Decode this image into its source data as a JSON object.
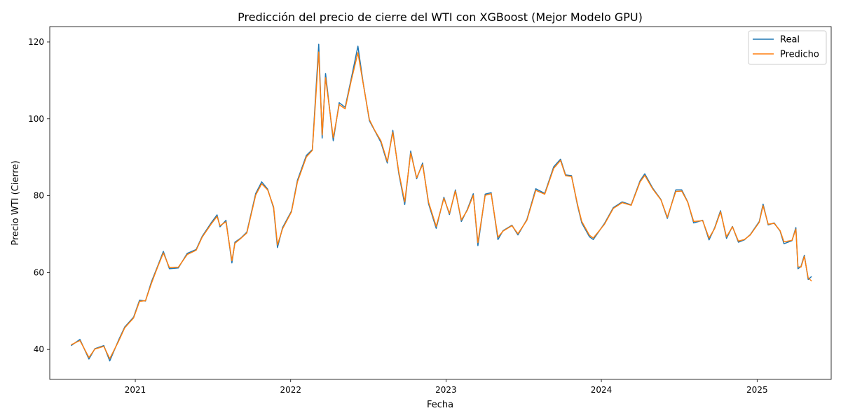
{
  "chart_data": {
    "type": "line",
    "title": "Predicción del precio de cierre del WTI con XGBoost (Mejor Modelo GPU)",
    "xlabel": "Fecha",
    "ylabel": "Precio WTI (Cierre)",
    "xlim": [
      "2020-06-14",
      "2025-06-24"
    ],
    "ylim": [
      32.2,
      124.0
    ],
    "x_ticks": [
      {
        "date": "2021-01-01",
        "label": "2021"
      },
      {
        "date": "2022-01-01",
        "label": "2022"
      },
      {
        "date": "2023-01-01",
        "label": "2023"
      },
      {
        "date": "2024-01-01",
        "label": "2024"
      },
      {
        "date": "2025-01-01",
        "label": "2025"
      }
    ],
    "y_ticks": [
      40,
      60,
      80,
      100,
      120
    ],
    "grid": false,
    "legend_position": "top-right",
    "x": [
      "2020-08-03",
      "2020-08-24",
      "2020-09-14",
      "2020-09-28",
      "2020-10-19",
      "2020-11-02",
      "2020-11-23",
      "2020-12-07",
      "2020-12-28",
      "2021-01-11",
      "2021-01-25",
      "2021-02-08",
      "2021-02-22",
      "2021-03-08",
      "2021-03-22",
      "2021-04-12",
      "2021-05-03",
      "2021-05-24",
      "2021-06-07",
      "2021-06-28",
      "2021-07-12",
      "2021-07-19",
      "2021-08-02",
      "2021-08-16",
      "2021-08-23",
      "2021-09-06",
      "2021-09-20",
      "2021-10-11",
      "2021-10-25",
      "2021-11-08",
      "2021-11-22",
      "2021-12-01",
      "2021-12-13",
      "2022-01-03",
      "2022-01-17",
      "2022-02-07",
      "2022-02-21",
      "2022-03-08",
      "2022-03-16",
      "2022-03-24",
      "2022-04-11",
      "2022-04-25",
      "2022-05-09",
      "2022-05-23",
      "2022-06-08",
      "2022-06-20",
      "2022-07-05",
      "2022-07-18",
      "2022-08-01",
      "2022-08-16",
      "2022-08-29",
      "2022-09-12",
      "2022-09-26",
      "2022-10-10",
      "2022-10-24",
      "2022-11-07",
      "2022-11-21",
      "2022-12-09",
      "2022-12-27",
      "2023-01-09",
      "2023-01-23",
      "2023-02-06",
      "2023-02-20",
      "2023-03-06",
      "2023-03-17",
      "2023-04-03",
      "2023-04-17",
      "2023-05-03",
      "2023-05-15",
      "2023-06-05",
      "2023-06-19",
      "2023-07-10",
      "2023-07-31",
      "2023-08-21",
      "2023-09-11",
      "2023-09-27",
      "2023-10-09",
      "2023-10-23",
      "2023-11-06",
      "2023-11-16",
      "2023-12-04",
      "2023-12-13",
      "2024-01-08",
      "2024-01-29",
      "2024-02-19",
      "2024-03-11",
      "2024-04-01",
      "2024-04-12",
      "2024-05-01",
      "2024-05-20",
      "2024-06-04",
      "2024-06-24",
      "2024-07-08",
      "2024-07-22",
      "2024-08-05",
      "2024-08-26",
      "2024-09-10",
      "2024-09-23",
      "2024-10-07",
      "2024-10-21",
      "2024-11-04",
      "2024-11-18",
      "2024-12-02",
      "2024-12-16",
      "2025-01-06",
      "2025-01-15",
      "2025-01-27",
      "2025-02-10",
      "2025-02-24",
      "2025-03-05",
      "2025-03-24",
      "2025-04-02",
      "2025-04-07",
      "2025-04-14",
      "2025-04-22",
      "2025-05-01",
      "2025-05-09"
    ],
    "series": [
      {
        "name": "Real",
        "color": "#1f77b4",
        "values": [
          41.0,
          42.6,
          37.5,
          40.2,
          41.0,
          37.0,
          42.5,
          45.8,
          48.4,
          52.8,
          52.6,
          57.6,
          61.5,
          65.5,
          61.0,
          61.2,
          65.0,
          66.0,
          69.4,
          72.9,
          75.0,
          71.9,
          73.6,
          62.5,
          67.9,
          69.0,
          70.5,
          80.6,
          83.6,
          81.7,
          76.8,
          66.5,
          71.7,
          76.0,
          84.0,
          90.5,
          92.0,
          119.4,
          95.0,
          111.8,
          94.3,
          104.2,
          103.0,
          110.3,
          118.9,
          109.6,
          99.5,
          96.8,
          93.9,
          88.5,
          97.0,
          85.8,
          77.7,
          91.6,
          84.4,
          88.5,
          77.9,
          71.5,
          79.6,
          75.1,
          81.5,
          73.3,
          76.4,
          80.5,
          67.0,
          80.4,
          80.8,
          68.6,
          70.9,
          72.3,
          69.8,
          73.8,
          81.8,
          80.6,
          87.5,
          89.5,
          85.4,
          85.2,
          77.4,
          72.9,
          69.3,
          68.6,
          72.7,
          76.9,
          78.4,
          77.6,
          83.9,
          85.7,
          81.9,
          79.0,
          74.1,
          81.5,
          81.5,
          78.4,
          72.9,
          73.6,
          68.5,
          71.6,
          76.1,
          68.9,
          72.0,
          67.9,
          68.5,
          69.9,
          73.3,
          77.8,
          72.4,
          72.9,
          70.8,
          67.5,
          68.3,
          71.7,
          61.0,
          61.6,
          64.5,
          58.2,
          59.0
        ]
      },
      {
        "name": "Predicho",
        "color": "#ff7f0e",
        "values": [
          41.2,
          42.3,
          37.9,
          40.1,
          40.8,
          37.6,
          42.2,
          45.6,
          48.2,
          52.5,
          52.7,
          57.2,
          61.3,
          65.1,
          61.3,
          61.4,
          64.7,
          65.8,
          69.2,
          72.6,
          74.6,
          72.2,
          73.2,
          63.1,
          67.6,
          68.9,
          70.3,
          80.2,
          83.1,
          81.5,
          77.1,
          67.2,
          71.4,
          75.8,
          83.6,
          90.1,
          91.8,
          117.4,
          95.8,
          110.7,
          95.1,
          103.7,
          102.6,
          109.8,
          117.2,
          109.4,
          99.8,
          96.9,
          94.3,
          88.9,
          96.5,
          86.2,
          78.4,
          91.1,
          84.7,
          88.1,
          78.3,
          72.0,
          79.3,
          75.4,
          81.2,
          73.7,
          76.2,
          80.1,
          67.8,
          80.1,
          80.5,
          69.2,
          70.8,
          72.2,
          70.1,
          73.6,
          81.4,
          80.4,
          87.1,
          89.2,
          85.2,
          85.0,
          77.7,
          73.3,
          69.7,
          69.0,
          72.5,
          76.7,
          78.2,
          77.5,
          83.6,
          85.3,
          81.7,
          78.9,
          74.4,
          81.1,
          81.2,
          78.3,
          73.3,
          73.5,
          69.0,
          71.4,
          75.8,
          69.3,
          71.9,
          68.2,
          68.6,
          69.8,
          73.1,
          77.4,
          72.6,
          72.8,
          70.9,
          68.0,
          68.4,
          71.3,
          61.6,
          61.4,
          64.2,
          58.6,
          57.8
        ]
      }
    ]
  }
}
